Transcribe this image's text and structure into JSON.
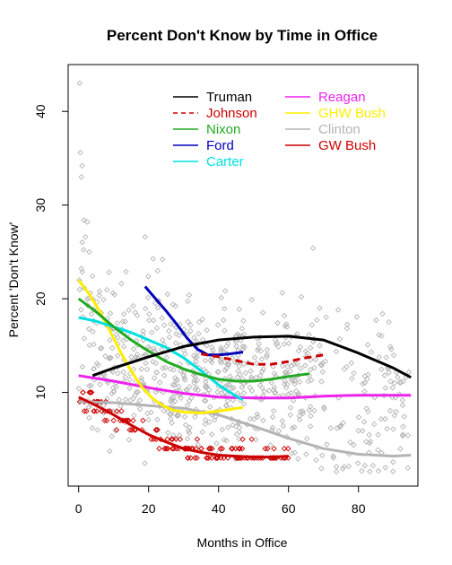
{
  "chart_data": {
    "type": "scatter",
    "title": "Percent Don't Know by Time in Office",
    "xlabel": "Months in Office",
    "ylabel": "Percent 'Don't Know'",
    "xlim": [
      -3,
      97
    ],
    "ylim": [
      0,
      45
    ],
    "xticks": [
      0,
      20,
      40,
      60,
      80
    ],
    "yticks": [
      10,
      20,
      30,
      40
    ],
    "grid": false,
    "legend_position": "top",
    "points": {
      "gray_color": "#b4b4b4",
      "red_color": "#cc0000"
    },
    "series": [
      {
        "name": "Truman",
        "color": "#000000",
        "dash": "",
        "x": [
          4,
          10,
          20,
          30,
          40,
          50,
          60,
          70,
          80,
          90,
          95
        ],
        "y": [
          11.8,
          12.6,
          13.8,
          14.9,
          15.6,
          15.9,
          16.0,
          15.6,
          14.2,
          12.6,
          11.6
        ]
      },
      {
        "name": "Johnson",
        "color": "#cc0000",
        "dash": "8,5",
        "x": [
          35,
          40,
          45,
          50,
          55,
          60,
          65,
          70
        ],
        "y": [
          14.1,
          13.8,
          13.4,
          13.0,
          13.0,
          13.3,
          13.7,
          14.0
        ]
      },
      {
        "name": "Nixon",
        "color": "#22aa22",
        "dash": "",
        "x": [
          0,
          5,
          10,
          15,
          20,
          25,
          30,
          35,
          40,
          45,
          50,
          55,
          60,
          66
        ],
        "y": [
          20.0,
          18.6,
          17.0,
          15.6,
          14.4,
          13.3,
          12.5,
          11.9,
          11.4,
          11.2,
          11.2,
          11.4,
          11.7,
          12.0
        ]
      },
      {
        "name": "Ford",
        "color": "#0000bb",
        "dash": "",
        "x": [
          19,
          22,
          25,
          28,
          31,
          34,
          37,
          40,
          43,
          47
        ],
        "y": [
          21.3,
          20.0,
          18.7,
          17.3,
          15.8,
          14.6,
          14.0,
          14.0,
          14.1,
          14.3
        ]
      },
      {
        "name": "Carter",
        "color": "#00e0e0",
        "dash": "",
        "x": [
          0,
          5,
          10,
          15,
          20,
          25,
          30,
          35,
          40,
          45,
          47
        ],
        "y": [
          18.0,
          17.6,
          17.0,
          16.4,
          15.6,
          14.8,
          13.7,
          12.3,
          10.8,
          9.6,
          9.2
        ]
      },
      {
        "name": "Reagan",
        "color": "#ee22ee",
        "dash": "",
        "x": [
          0,
          10,
          20,
          30,
          40,
          50,
          60,
          70,
          80,
          95
        ],
        "y": [
          11.8,
          11.2,
          10.5,
          9.9,
          9.5,
          9.4,
          9.4,
          9.6,
          9.7,
          9.7
        ]
      },
      {
        "name": "GHW Bush",
        "color": "#ffee00",
        "dash": "",
        "x": [
          0,
          3,
          6,
          9,
          12,
          15,
          18,
          21,
          24,
          27,
          30,
          35,
          40,
          47
        ],
        "y": [
          22.0,
          20.5,
          18.7,
          16.5,
          14.3,
          12.3,
          10.6,
          9.4,
          8.6,
          8.1,
          7.9,
          7.8,
          8.0,
          8.4
        ]
      },
      {
        "name": "Clinton",
        "color": "#b4b4b4",
        "dash": "",
        "x": [
          0,
          10,
          20,
          30,
          40,
          50,
          60,
          70,
          80,
          90,
          95
        ],
        "y": [
          9.0,
          8.9,
          8.6,
          8.3,
          7.6,
          6.4,
          5.1,
          4.0,
          3.4,
          3.2,
          3.3
        ]
      },
      {
        "name": "GW Bush",
        "color": "#cc0000",
        "dash": "",
        "x": [
          0,
          5,
          10,
          15,
          20,
          25,
          30,
          35,
          40,
          45,
          50,
          55,
          60
        ],
        "y": [
          9.5,
          8.6,
          7.6,
          6.5,
          5.5,
          4.7,
          4.0,
          3.6,
          3.3,
          3.2,
          3.1,
          3.1,
          3.2
        ]
      }
    ]
  }
}
